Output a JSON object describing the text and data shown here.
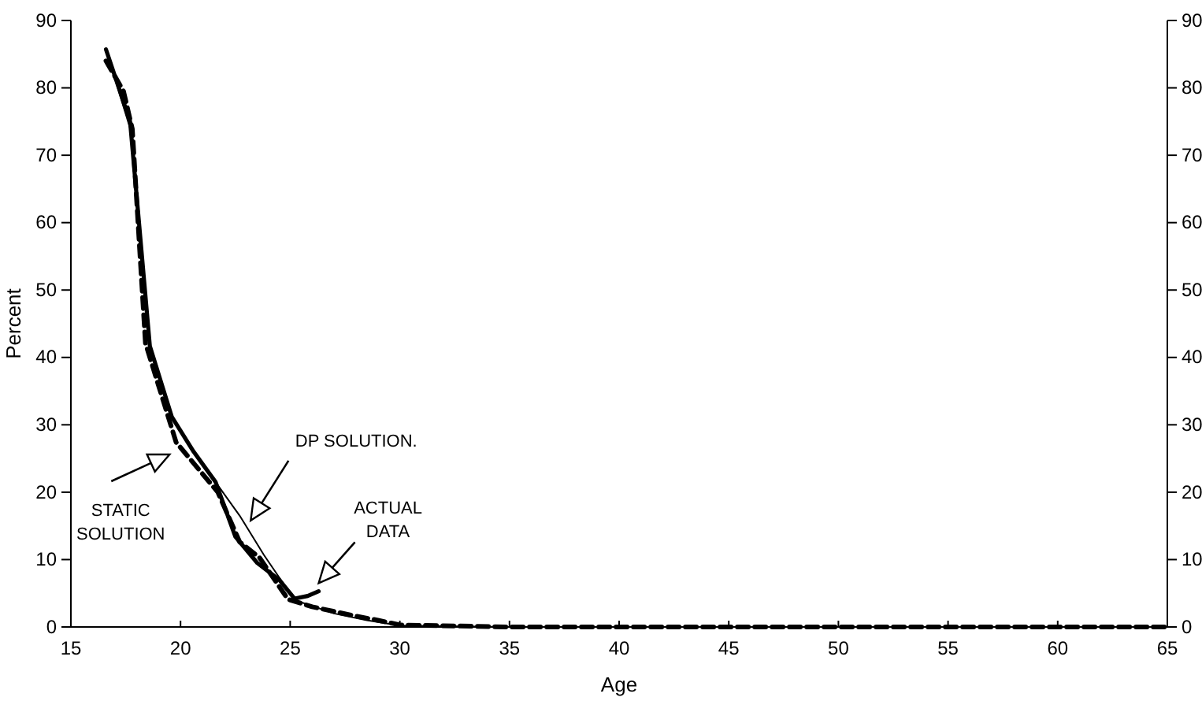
{
  "chart_data": {
    "type": "line",
    "xlabel": "Age",
    "ylabel": "Percent",
    "xlim": [
      15,
      65
    ],
    "xticks": [
      15,
      20,
      25,
      30,
      35,
      40,
      45,
      50,
      55,
      60,
      65
    ],
    "ylim": [
      0,
      90
    ],
    "yticks": [
      0,
      10,
      20,
      30,
      40,
      50,
      60,
      70,
      80,
      90
    ],
    "y2lim": [
      0,
      90
    ],
    "y2ticks": [
      0,
      10,
      20,
      30,
      40,
      50,
      60,
      70,
      80,
      90
    ],
    "grid": false,
    "marker": "none",
    "series": [
      {
        "color": "#000000",
        "line_style": "solid",
        "x": [
          16.6,
          17.7,
          18.6,
          19.6,
          20.6,
          21.6,
          22.5,
          23.5,
          24.5,
          25.2,
          25.8,
          26.3
        ],
        "values": [
          85.7,
          75,
          41.7,
          31.2,
          26,
          21.5,
          13.4,
          9.5,
          7,
          4.2,
          4.6,
          5.3
        ]
      },
      {
        "color": "#000000",
        "line_style": "solid",
        "x": [
          16.6,
          17.7,
          18.6,
          19.6,
          20.6,
          21.6,
          22.7,
          23.8,
          25.2,
          27,
          28.5,
          30,
          35,
          40,
          45,
          50,
          55,
          60,
          65
        ],
        "values": [
          85.7,
          74,
          41.5,
          31.2,
          26,
          21.5,
          16.5,
          10.7,
          4,
          2,
          1,
          0.2,
          0,
          0,
          0,
          0,
          0,
          0,
          0
        ]
      },
      {
        "color": "#000000",
        "line_style": "dashed",
        "x": [
          16.6,
          17.4,
          17.8,
          18.4,
          19.8,
          21.7,
          22.7,
          23.6,
          24.9,
          26,
          27,
          28,
          29,
          30,
          35,
          40,
          45,
          50,
          55,
          60,
          65
        ],
        "values": [
          84,
          79.5,
          73.9,
          42.1,
          27.4,
          20,
          12.6,
          10.3,
          4.1,
          3,
          2.3,
          1.6,
          1,
          0.3,
          0,
          0,
          0,
          0,
          0,
          0,
          0
        ]
      }
    ],
    "annotations": [
      "STATIC\nSOLUTION",
      "DP SOLUTION.",
      "ACTUAL\nDATA"
    ]
  }
}
